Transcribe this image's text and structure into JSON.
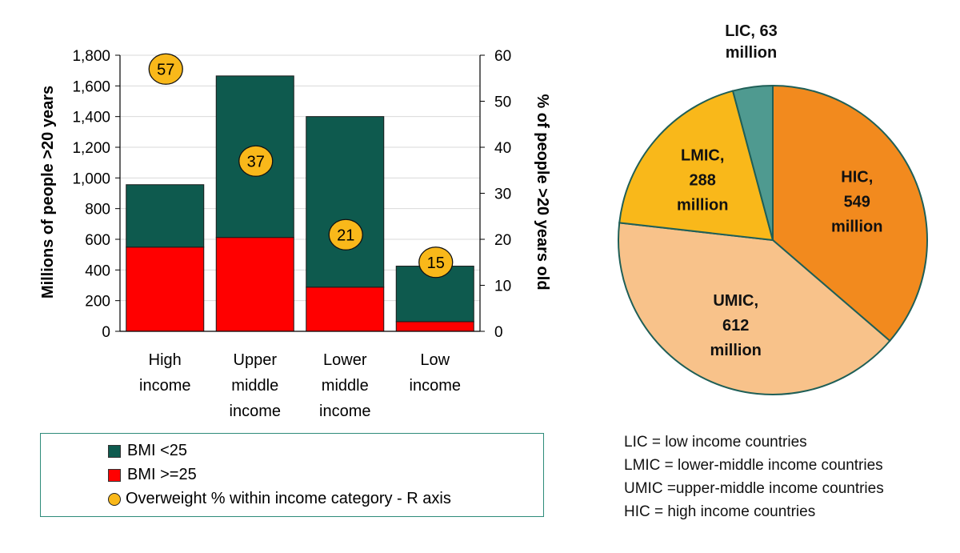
{
  "chart_data": [
    {
      "type": "bar",
      "stacked": true,
      "categories": [
        [
          "High",
          "income"
        ],
        [
          "Upper",
          "middle",
          "income"
        ],
        [
          "Lower",
          "middle",
          "income"
        ],
        [
          "Low",
          "income"
        ]
      ],
      "series": [
        {
          "name": "BMI >=25",
          "values": [
            549,
            612,
            288,
            63
          ],
          "color": "#ff0000"
        },
        {
          "name": "BMI <25",
          "values": [
            407,
            1053,
            1112,
            362
          ],
          "color": "#0e5a4e"
        }
      ],
      "overlay": {
        "name": "Overweight % within income category - R axis",
        "values": [
          57,
          37,
          21,
          15
        ],
        "color": "#f9b81a"
      },
      "ylabel": "Millions of people >20 years",
      "y2label": "% of people >20 years old",
      "ylim": [
        0,
        1800
      ],
      "y2lim": [
        0,
        60
      ],
      "yticks": [
        "0",
        "200",
        "400",
        "600",
        "800",
        "1,000",
        "1,200",
        "1,400",
        "1,600",
        "1,800"
      ],
      "y2ticks": [
        "0",
        "10",
        "20",
        "30",
        "40",
        "50",
        "60"
      ],
      "grid": true
    },
    {
      "type": "pie",
      "slices": [
        {
          "label": [
            "HIC,",
            "549",
            "million"
          ],
          "value": 549,
          "color": "#f28a1e"
        },
        {
          "label": [
            "UMIC,",
            "612",
            "million"
          ],
          "value": 612,
          "color": "#f8c28a"
        },
        {
          "label": [
            "LMIC,",
            "288",
            "million"
          ],
          "value": 288,
          "color": "#f9b81a"
        },
        {
          "label": [
            "LIC, 63",
            "million"
          ],
          "value": 63,
          "color": "#4f9a90"
        }
      ]
    }
  ],
  "legend": {
    "items": [
      {
        "label": "BMI <25",
        "color": "#0e5a4e",
        "shape": "square"
      },
      {
        "label": "BMI >=25",
        "color": "#ff0000",
        "shape": "square"
      },
      {
        "label": "Overweight % within income category - R axis",
        "color": "#f9b81a",
        "shape": "circle"
      }
    ]
  },
  "abbreviations": [
    "LIC = low income countries",
    "LMIC = lower-middle income countries",
    "UMIC =upper-middle income countries",
    "HIC = high income countries"
  ]
}
